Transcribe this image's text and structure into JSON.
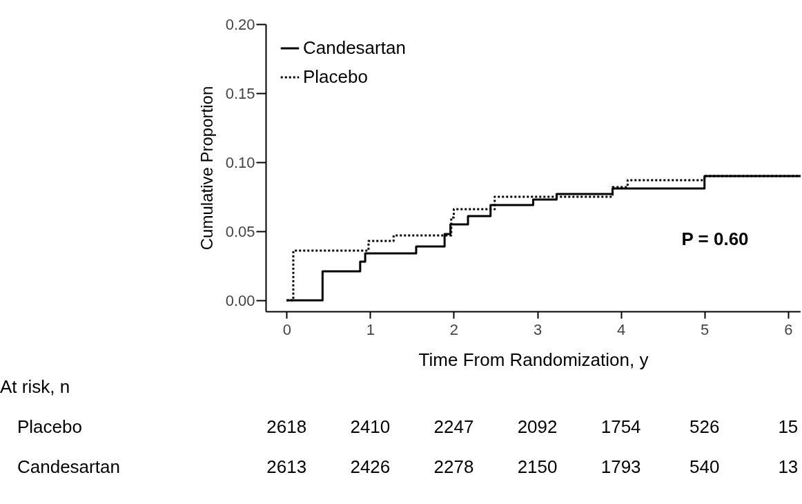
{
  "chart_data": {
    "type": "step",
    "xlabel": "Time From Randomization, y",
    "ylabel": "Cumulative Proportion",
    "xlim": [
      -0.25,
      6.15
    ],
    "ylim": [
      -0.008,
      0.2
    ],
    "xticks": [
      0,
      1,
      2,
      3,
      4,
      5,
      6
    ],
    "yticks": [
      {
        "value": 0,
        "label": "0.00"
      },
      {
        "value": 0.05,
        "label": "0.05"
      },
      {
        "value": 0.1,
        "label": "0.10"
      },
      {
        "value": 0.15,
        "label": "0.15"
      },
      {
        "value": 0.2,
        "label": "0.20"
      }
    ],
    "series": [
      {
        "name": "Candesartan",
        "color": "#000000",
        "line_style": "solid",
        "x": [
          0,
          0.43,
          0.88,
          0.94,
          1.55,
          1.89,
          1.96,
          2.17,
          2.44,
          2.95,
          3.23,
          3.9,
          5.0,
          6.15
        ],
        "values": [
          0,
          0.021,
          0.028,
          0.034,
          0.039,
          0.048,
          0.055,
          0.061,
          0.069,
          0.073,
          0.077,
          0.081,
          0.09,
          0.09
        ]
      },
      {
        "name": "Placebo",
        "color": "#000000",
        "line_style": "dotted",
        "x": [
          0,
          0.08,
          0.98,
          1.28,
          1.97,
          2.0,
          2.49,
          3.9,
          4.08,
          5.0,
          6.15
        ],
        "values": [
          0,
          0.036,
          0.043,
          0.047,
          0.06,
          0.066,
          0.075,
          0.082,
          0.087,
          0.09,
          0.09
        ]
      }
    ],
    "legend": "top left",
    "grid": false,
    "annotations": [
      "P = 0.60",
      "At risk, n",
      "Placebo",
      "2618",
      "2410",
      "2247",
      "2092",
      "1754",
      "526",
      "15",
      "Candesartan",
      "2613",
      "2426",
      "2278",
      "2150",
      "1793",
      "540",
      "13"
    ]
  }
}
